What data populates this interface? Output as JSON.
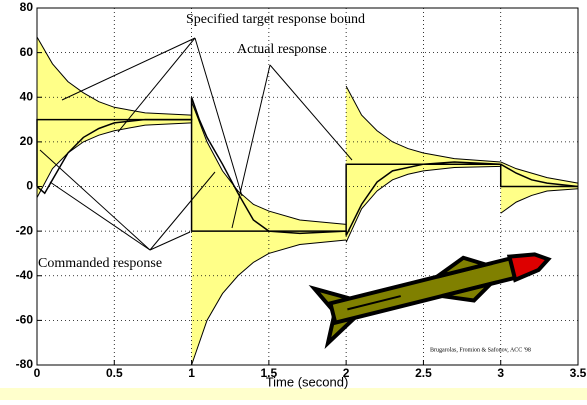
{
  "chart_data": {
    "type": "line",
    "xlabel": "Time (second)",
    "xlim": [
      0,
      3.5
    ],
    "ylim": [
      -80,
      80
    ],
    "xticks": [
      0,
      0.5,
      1,
      1.5,
      2,
      2.5,
      3,
      3.5
    ],
    "yticks": [
      -80,
      -60,
      -40,
      -20,
      0,
      20,
      40,
      60,
      80
    ],
    "grid": true,
    "bands": [
      {
        "color": "#ffff88",
        "x": [
          0,
          0.1,
          0.2,
          0.3,
          0.4,
          0.5,
          0.7,
          1
        ],
        "upper": [
          67,
          55,
          47,
          42,
          38,
          35.5,
          33,
          32
        ],
        "lower": [
          -5,
          8,
          15,
          20,
          23,
          25,
          27.5,
          28.5
        ]
      },
      {
        "color": "#ffff88",
        "x": [
          1,
          1.1,
          1.2,
          1.3,
          1.4,
          1.5,
          1.7,
          2
        ],
        "upper": [
          38,
          20,
          7,
          -2,
          -8,
          -11,
          -15,
          -17
        ],
        "lower": [
          -80,
          -60,
          -48,
          -40,
          -34,
          -30,
          -26,
          -24
        ]
      },
      {
        "color": "#ffff88",
        "x": [
          2,
          2.1,
          2.2,
          2.3,
          2.4,
          2.5,
          2.7,
          3
        ],
        "upper": [
          45,
          32,
          25,
          20,
          17,
          15,
          12.5,
          11
        ],
        "lower": [
          -25,
          -10,
          -2,
          3,
          5.5,
          7,
          8.5,
          9
        ]
      },
      {
        "color": "#ffff88",
        "x": [
          3,
          3.1,
          3.2,
          3.3,
          3.5
        ],
        "upper": [
          11,
          8,
          6,
          4,
          1.5
        ],
        "lower": [
          -12,
          -7,
          -4,
          -2,
          -1
        ]
      }
    ],
    "series": [
      {
        "color": "#000000",
        "x": [
          0,
          0,
          1,
          1,
          2,
          2,
          3,
          3,
          3.5
        ],
        "values": [
          0,
          30,
          30,
          -20,
          -20,
          10,
          10,
          0,
          0
        ]
      },
      {
        "color": "#000000",
        "x": [
          0,
          0.05,
          0.1,
          0.2,
          0.3,
          0.4,
          0.5,
          0.7,
          1,
          1,
          1.05,
          1.1,
          1.2,
          1.3,
          1.4,
          1.5,
          1.7,
          2,
          2,
          2.1,
          2.2,
          2.3,
          2.5,
          2.7,
          3,
          3,
          3.1,
          3.2,
          3.3,
          3.5
        ],
        "values": [
          0,
          -3,
          3,
          15,
          22,
          26,
          28.5,
          30,
          30,
          40,
          30,
          22,
          10,
          -3,
          -15,
          -20,
          -21,
          -20,
          -22,
          -8,
          2,
          7,
          10,
          11,
          10,
          10,
          6,
          3,
          1.5,
          0
        ]
      }
    ],
    "annotations": [
      "Specified target response bound",
      "Actual response",
      "Commanded response",
      "Brugarolas, Fromion & Safonov, ACC '98"
    ]
  }
}
